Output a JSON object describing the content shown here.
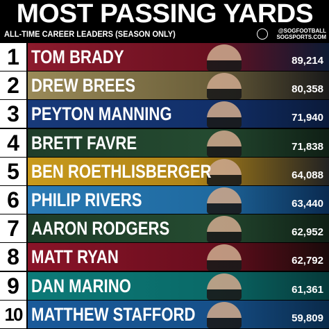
{
  "header": {
    "title": "MOST PASSING YARDS",
    "subtitle": "ALL-TIME CAREER LEADERS (SEASON ONLY)",
    "handle": "@SOGFOOTBALL",
    "site": "SOGSPORTS.COM"
  },
  "rows": [
    {
      "rank": "1",
      "name": "TOM BRADY",
      "yards": "89,214"
    },
    {
      "rank": "2",
      "name": "DREW BREES",
      "yards": "80,358"
    },
    {
      "rank": "3",
      "name": "PEYTON MANNING",
      "yards": "71,940"
    },
    {
      "rank": "4",
      "name": "BRETT FAVRE",
      "yards": "71,838"
    },
    {
      "rank": "5",
      "name": "BEN ROETHLISBERGER",
      "yards": "64,088"
    },
    {
      "rank": "6",
      "name": "PHILIP RIVERS",
      "yards": "63,440"
    },
    {
      "rank": "7",
      "name": "AARON RODGERS",
      "yards": "62,952"
    },
    {
      "rank": "8",
      "name": "MATT RYAN",
      "yards": "62,792"
    },
    {
      "rank": "9",
      "name": "DAN MARINO",
      "yards": "61,361"
    },
    {
      "rank": "10",
      "name": "MATTHEW STAFFORD",
      "yards": "59,809"
    }
  ]
}
